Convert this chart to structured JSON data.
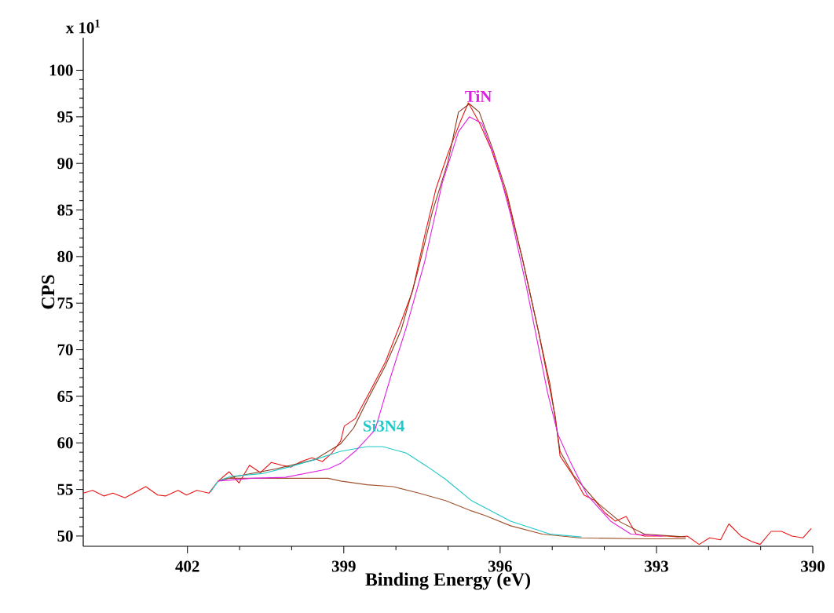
{
  "chart_data": {
    "type": "line",
    "xlabel": "Binding Energy (eV)",
    "ylabel": "CPS",
    "annotations": [
      "x 10$^{1}$"
    ],
    "xlim": [
      404,
      390
    ],
    "ylim": [
      48.9,
      103.5
    ],
    "xticks": [
      402,
      399,
      396,
      393,
      390
    ],
    "yticks": [
      50,
      55,
      60,
      65,
      70,
      75,
      80,
      85,
      90,
      95,
      100
    ],
    "marker": "none",
    "line_style": "solid",
    "legend": false,
    "series": [
      {
        "color": "#e81414",
        "x": [
          404.0,
          403.82,
          403.6,
          403.43,
          403.2,
          402.8,
          402.57,
          402.42,
          402.18,
          402.02,
          401.82,
          401.59,
          401.41,
          401.2,
          401.01,
          400.81,
          400.6,
          400.39,
          400.19,
          400.01,
          399.82,
          399.61,
          399.41,
          399.23,
          399.06,
          398.99,
          398.78,
          398.51,
          398.2,
          397.9,
          397.68,
          397.45,
          397.23,
          397.0,
          396.77,
          396.61,
          396.4,
          396.17,
          395.87,
          395.57,
          395.27,
          394.94,
          394.85,
          394.59,
          394.39,
          394.18,
          393.99,
          393.79,
          393.58,
          393.39,
          393.23,
          393.04,
          392.78,
          392.59,
          392.41,
          392.18,
          391.98,
          391.77,
          391.61,
          391.38,
          391.17,
          391.01,
          390.8,
          390.6,
          390.4,
          390.19,
          390.03
        ],
        "values": [
          54.6,
          54.9,
          54.3,
          54.6,
          54.1,
          55.3,
          54.4,
          54.3,
          54.9,
          54.4,
          54.9,
          54.6,
          55.9,
          56.9,
          55.7,
          57.6,
          56.8,
          57.9,
          57.6,
          57.4,
          58.0,
          58.4,
          58.0,
          58.9,
          60.2,
          61.8,
          62.6,
          65.4,
          68.7,
          73.0,
          76.3,
          82.2,
          87.3,
          91.1,
          94.4,
          96.5,
          94.4,
          91.5,
          86.4,
          79.7,
          72.1,
          62.8,
          58.6,
          56.4,
          54.4,
          53.8,
          52.5,
          51.6,
          52.1,
          50.2,
          50.0,
          50.0,
          50.0,
          49.9,
          50.0,
          49.1,
          49.8,
          49.6,
          51.3,
          50.0,
          49.4,
          49.1,
          50.5,
          50.5,
          50.0,
          49.8,
          50.8
        ]
      },
      {
        "color": "#8b3a1a",
        "x": [
          401.41,
          401.07,
          400.31,
          399.56,
          399.06,
          398.81,
          398.51,
          398.2,
          397.9,
          397.6,
          397.3,
          397.0,
          396.8,
          396.59,
          396.4,
          396.14,
          395.87,
          395.57,
          395.27,
          395.04,
          394.85,
          394.59,
          394.14,
          393.69,
          393.23,
          392.44
        ],
        "values": [
          55.9,
          56.4,
          57.2,
          58.2,
          59.9,
          61.6,
          65.0,
          68.3,
          72.1,
          78.0,
          84.8,
          90.2,
          95.5,
          96.4,
          95.5,
          91.5,
          86.8,
          79.7,
          72.1,
          66.2,
          59.1,
          56.5,
          53.6,
          51.5,
          50.2,
          49.9
        ]
      },
      {
        "color": "#a0522d",
        "x": [
          401.41,
          401.26,
          400.31,
          399.3,
          399.06,
          398.55,
          398.05,
          397.56,
          397.05,
          396.55,
          396.29,
          395.8,
          395.19,
          394.48,
          393.28,
          392.44
        ],
        "values": [
          55.9,
          56.2,
          56.2,
          56.2,
          55.9,
          55.5,
          55.3,
          54.6,
          53.8,
          52.7,
          52.2,
          51.1,
          50.2,
          49.8,
          49.7,
          49.7
        ]
      },
      {
        "name": "Si3N4",
        "color": "#20c8c8",
        "x": [
          401.56,
          401.41,
          401.17,
          400.57,
          400.06,
          399.56,
          399.06,
          398.55,
          398.25,
          397.8,
          397.41,
          397.05,
          396.55,
          395.8,
          395.04,
          394.44
        ],
        "values": [
          54.7,
          55.9,
          56.4,
          56.7,
          57.4,
          58.2,
          59.1,
          59.6,
          59.6,
          58.9,
          57.5,
          56.1,
          53.8,
          51.6,
          50.2,
          49.9
        ]
      },
      {
        "name": "TiN",
        "color": "#e020e0",
        "x": [
          401.41,
          400.77,
          400.12,
          399.3,
          399.06,
          398.76,
          398.4,
          398.1,
          397.8,
          397.45,
          397.11,
          396.8,
          396.59,
          396.35,
          396.05,
          395.8,
          395.49,
          395.09,
          394.89,
          394.64,
          394.33,
          393.88,
          393.49,
          392.89
        ],
        "values": [
          55.9,
          56.2,
          56.3,
          57.2,
          57.8,
          59.2,
          61.4,
          67.1,
          72.4,
          79.4,
          87.9,
          93.4,
          95.0,
          94.3,
          89.8,
          84.5,
          76.6,
          65.4,
          60.9,
          57.8,
          54.4,
          51.6,
          50.2,
          50.0
        ]
      }
    ]
  }
}
